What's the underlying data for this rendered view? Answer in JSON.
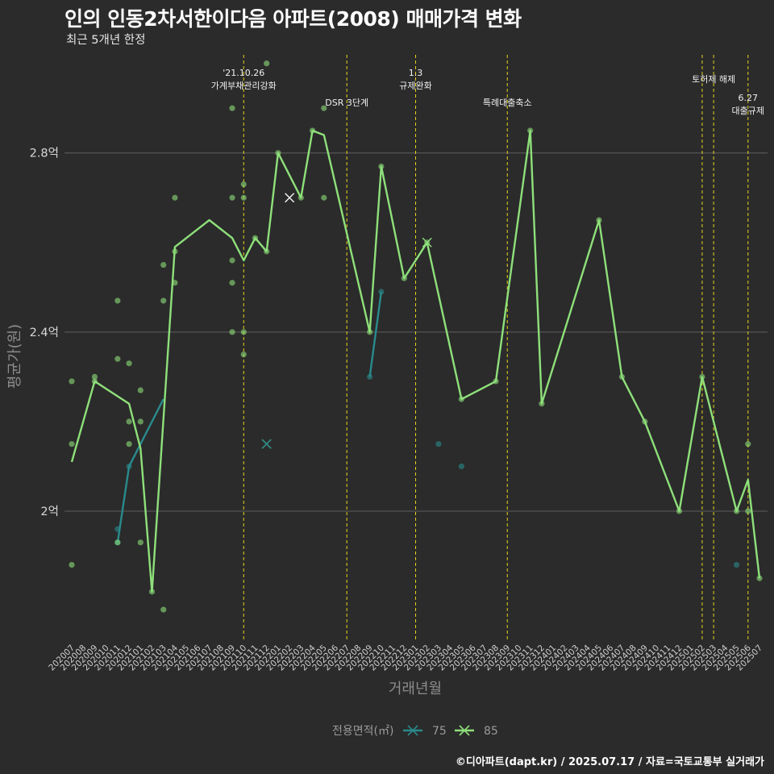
{
  "title": "인의 인동2차서한이다음 아파트(2008) 매매가격 변화",
  "subtitle": "최근 5개년 한정",
  "caption": "©디아파트(dapt.kr) / 2025.07.17 / 자료=국토교통부 실거래가",
  "chart_data": {
    "type": "line",
    "xlabel": "거래년월",
    "ylabel": "평균가(원)",
    "y_ticks": [
      2.0,
      2.4,
      2.8
    ],
    "y_tick_labels": [
      "2억",
      "2.4억",
      "2.8억"
    ],
    "ylim": [
      1.71,
      3.03
    ],
    "grid": "horizontal",
    "legend_position": "bottom",
    "legend_title": "전용면적(㎡)",
    "categories": [
      "202007",
      "202008",
      "202009",
      "202010",
      "202011",
      "202012",
      "202101",
      "202102",
      "202103",
      "202104",
      "202105",
      "202106",
      "202107",
      "202108",
      "202109",
      "202110",
      "202111",
      "202112",
      "202201",
      "202202",
      "202203",
      "202204",
      "202205",
      "202206",
      "202207",
      "202208",
      "202209",
      "202210",
      "202211",
      "202212",
      "202301",
      "202302",
      "202303",
      "202304",
      "202305",
      "202306",
      "202307",
      "202308",
      "202309",
      "202310",
      "202311",
      "202312",
      "202401",
      "202402",
      "202403",
      "202404",
      "202405",
      "202406",
      "202407",
      "202408",
      "202409",
      "202410",
      "202411",
      "202412",
      "202501",
      "202502",
      "202503",
      "202504",
      "202505",
      "202506",
      "202507"
    ],
    "series": [
      {
        "name": "75",
        "color": "#2a8a8c",
        "line": [
          [
            "202011",
            1.93
          ],
          [
            "202012",
            2.1
          ],
          [
            "202103",
            2.25
          ]
        ],
        "line2": [
          [
            "202209",
            2.3
          ],
          [
            "202210",
            2.49
          ]
        ],
        "points": [
          [
            "202011",
            1.93
          ],
          [
            "202011",
            1.96
          ],
          [
            "202012",
            2.1
          ],
          [
            "202209",
            2.3
          ],
          [
            "202210",
            2.49
          ],
          [
            "202303",
            2.15
          ],
          [
            "202305",
            2.1
          ],
          [
            "202505",
            1.88
          ]
        ],
        "markers_x": [
          [
            "202112",
            2.15
          ],
          [
            "202302",
            2.6
          ]
        ]
      },
      {
        "name": "85",
        "color": "#8ee07a",
        "line": [
          [
            "202007",
            2.11
          ],
          [
            "202009",
            2.29
          ],
          [
            "202012",
            2.24
          ],
          [
            "202101",
            2.14
          ],
          [
            "202102",
            1.82
          ],
          [
            "202104",
            2.59
          ],
          [
            "202107",
            2.65
          ],
          [
            "202109",
            2.61
          ],
          [
            "202110",
            2.56
          ],
          [
            "202111",
            2.61
          ],
          [
            "202112",
            2.58
          ],
          [
            "202201",
            2.8
          ],
          [
            "202203",
            2.7
          ],
          [
            "202204",
            2.85
          ],
          [
            "202205",
            2.84
          ],
          [
            "202209",
            2.4
          ],
          [
            "202210",
            2.77
          ],
          [
            "202212",
            2.52
          ],
          [
            "202302",
            2.6
          ],
          [
            "202305",
            2.25
          ],
          [
            "202308",
            2.29
          ],
          [
            "202311",
            2.85
          ],
          [
            "202312",
            2.24
          ],
          [
            "202405",
            2.65
          ],
          [
            "202407",
            2.3
          ],
          [
            "202409",
            2.2
          ],
          [
            "202412",
            2.0
          ],
          [
            "202502",
            2.3
          ],
          [
            "202505",
            2.0
          ],
          [
            "202506",
            2.07
          ],
          [
            "202507",
            1.85
          ]
        ],
        "points": [
          [
            "202007",
            2.29
          ],
          [
            "202007",
            2.15
          ],
          [
            "202007",
            1.88
          ],
          [
            "202009",
            2.29
          ],
          [
            "202009",
            2.3
          ],
          [
            "202011",
            2.47
          ],
          [
            "202011",
            2.34
          ],
          [
            "202011",
            1.93
          ],
          [
            "202012",
            2.33
          ],
          [
            "202012",
            2.2
          ],
          [
            "202012",
            2.15
          ],
          [
            "202101",
            2.27
          ],
          [
            "202101",
            2.2
          ],
          [
            "202101",
            1.93
          ],
          [
            "202102",
            1.82
          ],
          [
            "202103",
            2.55
          ],
          [
            "202103",
            2.47
          ],
          [
            "202103",
            1.78
          ],
          [
            "202104",
            2.7
          ],
          [
            "202104",
            2.58
          ],
          [
            "202104",
            2.51
          ],
          [
            "202109",
            2.9
          ],
          [
            "202109",
            2.7
          ],
          [
            "202109",
            2.56
          ],
          [
            "202109",
            2.51
          ],
          [
            "202109",
            2.4
          ],
          [
            "202110",
            2.73
          ],
          [
            "202110",
            2.7
          ],
          [
            "202110",
            2.4
          ],
          [
            "202110",
            2.35
          ],
          [
            "202111",
            2.61
          ],
          [
            "202112",
            3.0
          ],
          [
            "202112",
            2.58
          ],
          [
            "202201",
            2.8
          ],
          [
            "202203",
            2.7
          ],
          [
            "202204",
            2.85
          ],
          [
            "202205",
            2.9
          ],
          [
            "202205",
            2.7
          ],
          [
            "202209",
            2.4
          ],
          [
            "202210",
            2.77
          ],
          [
            "202212",
            2.52
          ],
          [
            "202302",
            2.6
          ],
          [
            "202305",
            2.25
          ],
          [
            "202308",
            2.29
          ],
          [
            "202311",
            2.85
          ],
          [
            "202312",
            2.24
          ],
          [
            "202405",
            2.65
          ],
          [
            "202407",
            2.3
          ],
          [
            "202409",
            2.2
          ],
          [
            "202412",
            2.0
          ],
          [
            "202502",
            2.3
          ],
          [
            "202505",
            2.0
          ],
          [
            "202506",
            2.15
          ],
          [
            "202506",
            2.0
          ],
          [
            "202507",
            1.85
          ]
        ],
        "markers_x": [
          [
            "202112",
            2.15
          ],
          [
            "202202",
            2.7
          ],
          [
            "202302",
            2.6
          ]
        ]
      }
    ],
    "annotations": [
      {
        "x": "202110",
        "lines": [
          "'21.10.26",
          "가계부채관리강화"
        ],
        "row": 0
      },
      {
        "x": "202207",
        "lines": [
          "DSR 3단계"
        ],
        "row": 1
      },
      {
        "x": "202301",
        "lines": [
          "1.3",
          "규제완화"
        ],
        "row": 0
      },
      {
        "x": "202309",
        "lines": [
          "특례대출축소"
        ],
        "row": 1
      },
      {
        "x": "202502",
        "lines": [],
        "row": 0
      },
      {
        "x": "202503",
        "lines": [
          "토허제 해제"
        ],
        "row": 0
      },
      {
        "x": "202506",
        "lines": [
          "6.27",
          "대출규제"
        ],
        "row": 1
      }
    ]
  }
}
